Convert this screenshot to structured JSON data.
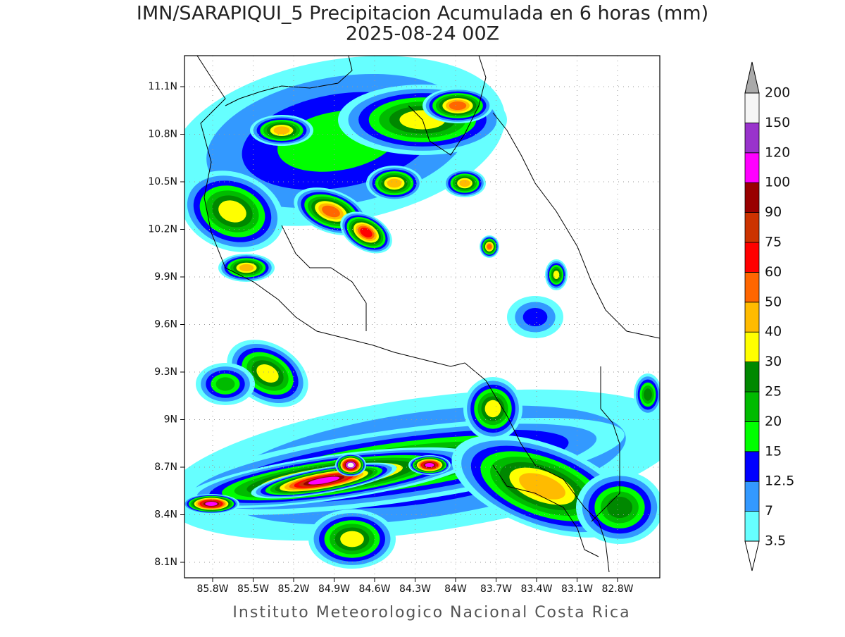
{
  "title": "IMN/SARAPIQUI_5 Precipitacion Acumulada en 6 horas (mm)",
  "subtitle": "2025-08-24 00Z",
  "y_axis": {
    "ticks": [
      "11.1N",
      "10.8N",
      "10.5N",
      "10.2N",
      "9.9N",
      "9.6N",
      "9.3N",
      "9N",
      "8.7N",
      "8.4N",
      "8.1N"
    ]
  },
  "x_axis": {
    "ticks": [
      "85.8W",
      "85.5W",
      "85.2W",
      "84.9W",
      "84.6W",
      "84.3W",
      "84W",
      "83.7W",
      "83.4W",
      "83.1W",
      "82.8W"
    ]
  },
  "colorbar": {
    "levels": [
      3.5,
      7,
      12.5,
      15,
      20,
      25,
      30,
      40,
      50,
      60,
      75,
      90,
      100,
      120,
      150,
      200
    ],
    "colors": [
      "#66ffff",
      "#3399ff",
      "#0000ff",
      "#00ff00",
      "#00bb00",
      "#008800",
      "#ffff00",
      "#ffbb00",
      "#ff6600",
      "#ff0000",
      "#cc3300",
      "#990000",
      "#ff00ff",
      "#9933cc",
      "#f5f5f5"
    ],
    "over_color": "#aaaaaa",
    "under_color": "#ffffff"
  },
  "footer": "Instituto Meteorologico Nacional Costa Rica"
}
